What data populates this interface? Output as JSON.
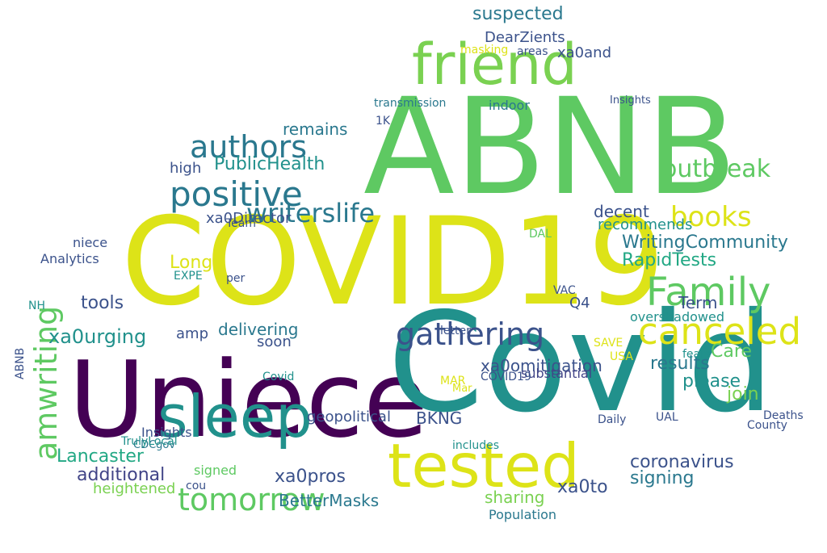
{
  "palette": {
    "lime": "#7ad151",
    "green": "#5ec962",
    "yellow": "#dde318",
    "teal": "#21918c",
    "teal_dark": "#2a788e",
    "blue": "#3b528b",
    "indigo": "#414487",
    "purple": "#440154",
    "sea": "#22a884",
    "cyan": "#1fa187"
  },
  "words": [
    "COVID19",
    "Uniece",
    "Covid",
    "ABNB",
    "friend",
    "tested",
    "sleep",
    "Family",
    "canceled",
    "positive",
    "gathering",
    "authors",
    "writerslife",
    "tomorrow",
    "books",
    "amwriting",
    "xa0urging",
    "outbreak",
    "WritingCommunity",
    "PublicHealth",
    "RapidTests",
    "Long",
    "suspected",
    "DearZients",
    "Term",
    "xa0Director",
    "remains",
    "decent",
    "high",
    "recommends",
    "Analytics",
    "tools",
    "Lancaster",
    "additional",
    "heightened",
    "BetterMasks",
    "xa0pros",
    "xa0omitigation",
    "results",
    "please",
    "Care",
    "coronavirus",
    "signing",
    "xa0to",
    "Population",
    "sharing",
    "join",
    "BKNG",
    "substantial",
    "delivering",
    "indoor",
    "transmission",
    "Insights",
    "1K",
    "Daily",
    "CDCgov",
    "MAR",
    "VAC",
    "DAL",
    "UAL",
    "NH",
    "Q4",
    "EXPE",
    "SAVE",
    "cou",
    "amp",
    "per",
    "letter",
    "fears",
    "niece",
    "includes",
    "signed",
    "soon",
    "County",
    "overshadowed",
    "geopolitical",
    "USA",
    "Deaths",
    "xa0and",
    "masking",
    "areas",
    "Team",
    "TrulyLocal",
    "Covid",
    "ABNB",
    "COVID19",
    "Mar",
    "Insights"
  ]
}
